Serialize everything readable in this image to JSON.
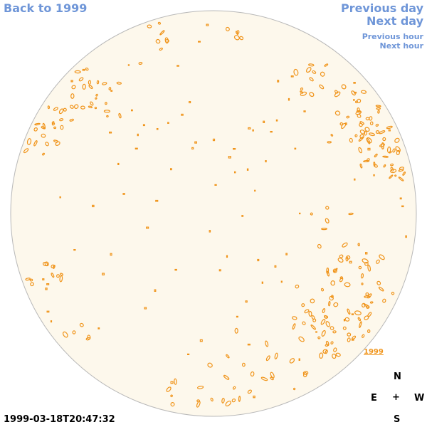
{
  "nav": {
    "back": "Back to 1999",
    "previous_day": "Previous day",
    "next_day": "Next day",
    "previous_hour": "Previous hour",
    "next_hour": "Next hour"
  },
  "compass": {
    "north": "N",
    "east": "E",
    "center": "+",
    "west": "W",
    "south": "S"
  },
  "timestamp": "1999-03-18T20:47:32",
  "year_link": "1999",
  "colors": {
    "disk_fill": "#fdf8ec",
    "disk_border": "#b8b8b8",
    "contour": "#f0941a",
    "nav_link": "#6f96d8"
  }
}
